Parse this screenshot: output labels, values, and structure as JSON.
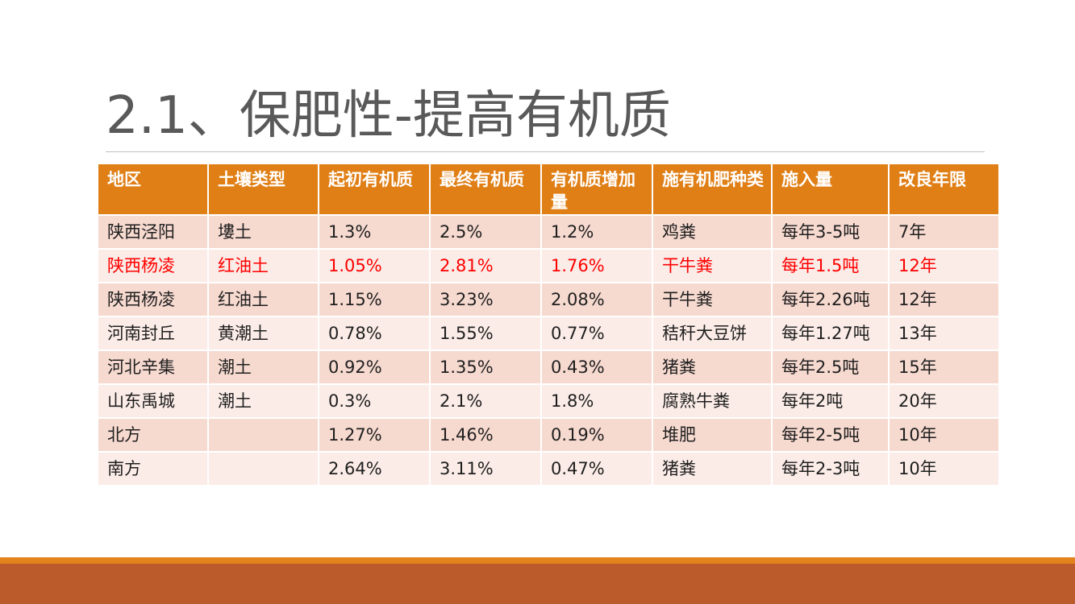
{
  "title": "2.1、保肥性-提高有机质",
  "table": {
    "headers": [
      "地区",
      "土壤类型",
      "起初有机质",
      "最终有机质",
      "有机质增加量",
      "施有机肥种类",
      "施入量",
      "改良年限"
    ],
    "rows": [
      {
        "cells": [
          "陕西泾阳",
          "塿土",
          "1.3%",
          "2.5%",
          "1.2%",
          "鸡粪",
          "每年3-5吨",
          "7年"
        ],
        "highlight": false
      },
      {
        "cells": [
          "陕西杨凌",
          "红油土",
          "1.05%",
          "2.81%",
          "1.76%",
          "干牛粪",
          "每年1.5吨",
          "12年"
        ],
        "highlight": true
      },
      {
        "cells": [
          "陕西杨凌",
          "红油土",
          "1.15%",
          "3.23%",
          "2.08%",
          "干牛粪",
          "每年2.26吨",
          "12年"
        ],
        "highlight": false
      },
      {
        "cells": [
          "河南封丘",
          "黄潮土",
          "0.78%",
          "1.55%",
          "0.77%",
          "秸秆大豆饼",
          "每年1.27吨",
          "13年"
        ],
        "highlight": false
      },
      {
        "cells": [
          "河北辛集",
          "潮土",
          "0.92%",
          "1.35%",
          "0.43%",
          "猪粪",
          "每年2.5吨",
          "15年"
        ],
        "highlight": false
      },
      {
        "cells": [
          "山东禹城",
          "潮土",
          "0.3%",
          "2.1%",
          "1.8%",
          "腐熟牛粪",
          "每年2吨",
          "20年"
        ],
        "highlight": false
      },
      {
        "cells": [
          "北方",
          "",
          "1.27%",
          "1.46%",
          "0.19%",
          "堆肥",
          "每年2-5吨",
          "10年"
        ],
        "highlight": false
      },
      {
        "cells": [
          "南方",
          "",
          "2.64%",
          "3.11%",
          "0.47%",
          "猪粪",
          "每年2-3吨",
          "10年"
        ],
        "highlight": false
      }
    ]
  },
  "colors": {
    "header_bg": "#e07f16",
    "row_odd": "#f6d9cf",
    "row_even": "#fbece7",
    "highlight_text": "#ff0000",
    "footer_accent": "#e3831d",
    "footer_band": "#bb5a2a"
  }
}
